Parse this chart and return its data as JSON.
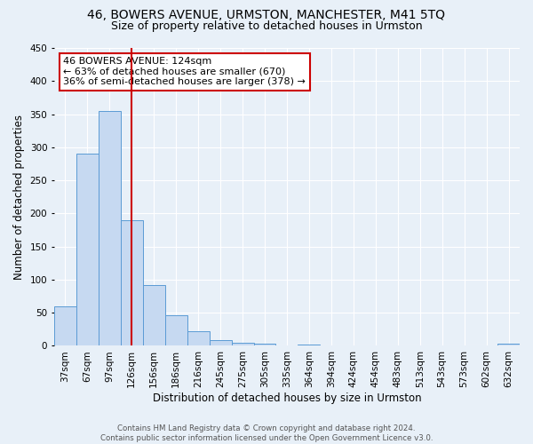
{
  "title": "46, BOWERS AVENUE, URMSTON, MANCHESTER, M41 5TQ",
  "subtitle": "Size of property relative to detached houses in Urmston",
  "xlabel": "Distribution of detached houses by size in Urmston",
  "ylabel": "Number of detached properties",
  "bar_labels": [
    "37sqm",
    "67sqm",
    "97sqm",
    "126sqm",
    "156sqm",
    "186sqm",
    "216sqm",
    "245sqm",
    "275sqm",
    "305sqm",
    "335sqm",
    "364sqm",
    "394sqm",
    "424sqm",
    "454sqm",
    "483sqm",
    "513sqm",
    "543sqm",
    "573sqm",
    "602sqm",
    "632sqm"
  ],
  "bar_values": [
    60,
    290,
    355,
    190,
    92,
    46,
    22,
    8,
    5,
    3,
    0,
    2,
    0,
    0,
    0,
    0,
    0,
    0,
    0,
    0,
    3
  ],
  "bar_color": "#c6d9f1",
  "bar_edge_color": "#5b9bd5",
  "vline_x": 3,
  "vline_color": "#cc0000",
  "annotation_line1": "46 BOWERS AVENUE: 124sqm",
  "annotation_line2": "← 63% of detached houses are smaller (670)",
  "annotation_line3": "36% of semi-detached houses are larger (378) →",
  "annotation_box_edge_color": "#cc0000",
  "annotation_box_face_color": "white",
  "ylim": [
    0,
    450
  ],
  "yticks": [
    0,
    50,
    100,
    150,
    200,
    250,
    300,
    350,
    400,
    450
  ],
  "footer_text": "Contains HM Land Registry data © Crown copyright and database right 2024.\nContains public sector information licensed under the Open Government Licence v3.0.",
  "background_color": "#e8f0f8",
  "grid_color": "white",
  "title_fontsize": 10,
  "subtitle_fontsize": 9,
  "axis_label_fontsize": 8.5,
  "tick_fontsize": 7.5,
  "annotation_fontsize": 8
}
